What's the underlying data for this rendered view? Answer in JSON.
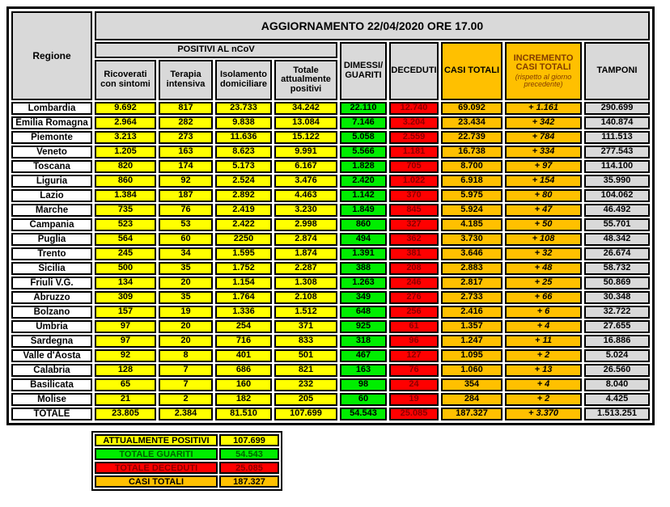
{
  "chart_data": {
    "type": "table",
    "title": "AGGIORNAMENTO 22/04/2020 ORE 17.00",
    "header": {
      "regione": "Regione",
      "positivi_group": "POSITIVI AL nCoV",
      "ricoverati": "Ricoverati con sintomi",
      "terapia": "Terapia intensiva",
      "isolamento": "Isolamento domiciliare",
      "totale": "Totale attualmente positivi",
      "guariti": "DIMESSI/\nGUARITI",
      "deceduti": "DECEDUTI",
      "casi": "CASI TOTALI",
      "incremento": "INCREMENTO CASI TOTALI",
      "incremento_note": "(rispetto al giorno precedente)",
      "tamponi": "TAMPONI"
    },
    "rows": [
      {
        "regione": "Lombardia",
        "ricoverati": "9.692",
        "terapia": "817",
        "isolamento": "23.733",
        "totale": "34.242",
        "guariti": "22.110",
        "deceduti": "12.740",
        "casi": "69.092",
        "incremento": "+ 1.161",
        "tamponi": "290.699"
      },
      {
        "regione": "Emilia Romagna",
        "ricoverati": "2.964",
        "terapia": "282",
        "isolamento": "9.838",
        "totale": "13.084",
        "guariti": "7.146",
        "deceduti": "3.204",
        "casi": "23.434",
        "incremento": "+ 342",
        "tamponi": "140.874"
      },
      {
        "regione": "Piemonte",
        "ricoverati": "3.213",
        "terapia": "273",
        "isolamento": "11.636",
        "totale": "15.122",
        "guariti": "5.058",
        "deceduti": "2.559",
        "casi": "22.739",
        "incremento": "+ 784",
        "tamponi": "111.513"
      },
      {
        "regione": "Veneto",
        "ricoverati": "1.205",
        "terapia": "163",
        "isolamento": "8.623",
        "totale": "9.991",
        "guariti": "5.566",
        "deceduti": "1.181",
        "casi": "16.738",
        "incremento": "+ 334",
        "tamponi": "277.543"
      },
      {
        "regione": "Toscana",
        "ricoverati": "820",
        "terapia": "174",
        "isolamento": "5.173",
        "totale": "6.167",
        "guariti": "1.828",
        "deceduti": "705",
        "casi": "8.700",
        "incremento": "+ 97",
        "tamponi": "114.100"
      },
      {
        "regione": "Liguria",
        "ricoverati": "860",
        "terapia": "92",
        "isolamento": "2.524",
        "totale": "3.476",
        "guariti": "2.420",
        "deceduti": "1.022",
        "casi": "6.918",
        "incremento": "+ 154",
        "tamponi": "35.990"
      },
      {
        "regione": "Lazio",
        "ricoverati": "1.384",
        "terapia": "187",
        "isolamento": "2.892",
        "totale": "4.463",
        "guariti": "1.142",
        "deceduti": "370",
        "casi": "5.975",
        "incremento": "+ 80",
        "tamponi": "104.062"
      },
      {
        "regione": "Marche",
        "ricoverati": "735",
        "terapia": "76",
        "isolamento": "2.419",
        "totale": "3.230",
        "guariti": "1.849",
        "deceduti": "845",
        "casi": "5.924",
        "incremento": "+ 47",
        "tamponi": "46.492"
      },
      {
        "regione": "Campania",
        "ricoverati": "523",
        "terapia": "53",
        "isolamento": "2.422",
        "totale": "2.998",
        "guariti": "860",
        "deceduti": "327",
        "casi": "4.185",
        "incremento": "+ 50",
        "tamponi": "55.701"
      },
      {
        "regione": "Puglia",
        "ricoverati": "564",
        "terapia": "60",
        "isolamento": "2250",
        "totale": "2.874",
        "guariti": "494",
        "deceduti": "362",
        "casi": "3.730",
        "incremento": "+ 108",
        "tamponi": "48.342"
      },
      {
        "regione": "Trento",
        "ricoverati": "245",
        "terapia": "34",
        "isolamento": "1.595",
        "totale": "1.874",
        "guariti": "1.391",
        "deceduti": "381",
        "casi": "3.646",
        "incremento": "+ 32",
        "tamponi": "26.674"
      },
      {
        "regione": "Sicilia",
        "ricoverati": "500",
        "terapia": "35",
        "isolamento": "1.752",
        "totale": "2.287",
        "guariti": "388",
        "deceduti": "208",
        "casi": "2.883",
        "incremento": "+ 48",
        "tamponi": "58.732"
      },
      {
        "regione": "Friuli V.G.",
        "ricoverati": "134",
        "terapia": "20",
        "isolamento": "1.154",
        "totale": "1.308",
        "guariti": "1.263",
        "deceduti": "246",
        "casi": "2.817",
        "incremento": "+ 25",
        "tamponi": "50.869"
      },
      {
        "regione": "Abruzzo",
        "ricoverati": "309",
        "terapia": "35",
        "isolamento": "1.764",
        "totale": "2.108",
        "guariti": "349",
        "deceduti": "276",
        "casi": "2.733",
        "incremento": "+ 66",
        "tamponi": "30.348"
      },
      {
        "regione": "Bolzano",
        "ricoverati": "157",
        "terapia": "19",
        "isolamento": "1.336",
        "totale": "1.512",
        "guariti": "648",
        "deceduti": "256",
        "casi": "2.416",
        "incremento": "+ 6",
        "tamponi": "32.722"
      },
      {
        "regione": "Umbria",
        "ricoverati": "97",
        "terapia": "20",
        "isolamento": "254",
        "totale": "371",
        "guariti": "925",
        "deceduti": "61",
        "casi": "1.357",
        "incremento": "+ 4",
        "tamponi": "27.655"
      },
      {
        "regione": "Sardegna",
        "ricoverati": "97",
        "terapia": "20",
        "isolamento": "716",
        "totale": "833",
        "guariti": "318",
        "deceduti": "96",
        "casi": "1.247",
        "incremento": "+ 11",
        "tamponi": "16.886"
      },
      {
        "regione": "Valle d'Aosta",
        "ricoverati": "92",
        "terapia": "8",
        "isolamento": "401",
        "totale": "501",
        "guariti": "467",
        "deceduti": "127",
        "casi": "1.095",
        "incremento": "+ 2",
        "tamponi": "5.024"
      },
      {
        "regione": "Calabria",
        "ricoverati": "128",
        "terapia": "7",
        "isolamento": "686",
        "totale": "821",
        "guariti": "163",
        "deceduti": "76",
        "casi": "1.060",
        "incremento": "+ 13",
        "tamponi": "26.560"
      },
      {
        "regione": "Basilicata",
        "ricoverati": "65",
        "terapia": "7",
        "isolamento": "160",
        "totale": "232",
        "guariti": "98",
        "deceduti": "24",
        "casi": "354",
        "incremento": "+ 4",
        "tamponi": "8.040"
      },
      {
        "regione": "Molise",
        "ricoverati": "21",
        "terapia": "2",
        "isolamento": "182",
        "totale": "205",
        "guariti": "60",
        "deceduti": "19",
        "casi": "284",
        "incremento": "+ 2",
        "tamponi": "4.425"
      }
    ],
    "totale": {
      "regione": "TOTALE",
      "ricoverati": "23.805",
      "terapia": "2.384",
      "isolamento": "81.510",
      "totale": "107.699",
      "guariti": "54.543",
      "deceduti": "25.085",
      "casi": "187.327",
      "incremento": "+ 3.370",
      "tamponi": "1.513.251"
    },
    "summary": [
      {
        "label": "ATTUALMENTE POSITIVI",
        "value": "107.699",
        "color": "#ffff00",
        "text_color": "#000000"
      },
      {
        "label": "TOTALE GUARITI",
        "value": "54.543",
        "color": "#00ee00",
        "text_color": "#006400"
      },
      {
        "label": "TOTALE DECEDUTI",
        "value": "25.085",
        "color": "#ff0000",
        "text_color": "#8b0000"
      },
      {
        "label": "CASI TOTALI",
        "value": "187.327",
        "color": "#ffc000",
        "text_color": "#000000"
      }
    ]
  },
  "colors": {
    "yellow": "#ffff00",
    "green": "#00ee00",
    "red": "#ff0000",
    "orange": "#ffc000",
    "header_gray": "#d9d9d9",
    "deceduti_text": "#8b0000",
    "incremento_header_text": "#833C00",
    "border": "#000000"
  }
}
